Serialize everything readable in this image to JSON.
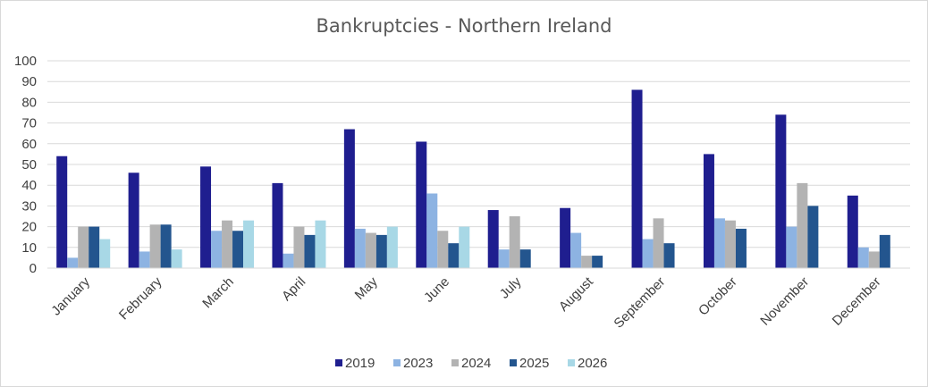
{
  "chart_data": {
    "type": "bar",
    "title": "Bankruptcies - Northern Ireland",
    "ylim": [
      0,
      100
    ],
    "yticks": [
      0,
      10,
      20,
      30,
      40,
      50,
      60,
      70,
      80,
      90,
      100
    ],
    "grid": true,
    "legend_position": "bottom",
    "categories": [
      "January",
      "February",
      "March",
      "April",
      "May",
      "June",
      "July",
      "August",
      "September",
      "October",
      "November",
      "December"
    ],
    "series": [
      {
        "name": "2019",
        "color": "#1f1e8f",
        "values": [
          54,
          46,
          49,
          41,
          67,
          61,
          28,
          29,
          86,
          55,
          74,
          35
        ]
      },
      {
        "name": "2023",
        "color": "#8db3e2",
        "values": [
          5,
          8,
          18,
          7,
          19,
          36,
          9,
          17,
          14,
          24,
          20,
          10
        ]
      },
      {
        "name": "2024",
        "color": "#b3b3b3",
        "values": [
          20,
          21,
          23,
          20,
          17,
          18,
          25,
          6,
          24,
          23,
          41,
          8
        ]
      },
      {
        "name": "2025",
        "color": "#23558e",
        "values": [
          20,
          21,
          18,
          16,
          16,
          12,
          9,
          6,
          12,
          19,
          30,
          16
        ]
      },
      {
        "name": "2026",
        "color": "#a8d8e6",
        "values": [
          14,
          9,
          23,
          23,
          20,
          20,
          null,
          null,
          null,
          null,
          null,
          null
        ]
      }
    ]
  }
}
